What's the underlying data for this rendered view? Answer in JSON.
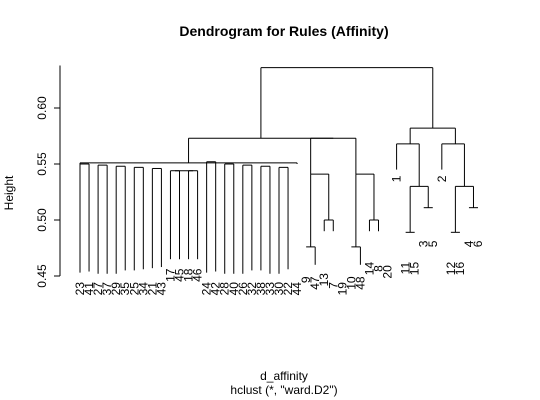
{
  "chart_data": {
    "type": "dendrogram",
    "title": "Dendrogram for Rules (Affinity)",
    "xlabel": "d_affinity",
    "sublabel": "hclust (*, \"ward.D2\")",
    "ylabel": "Height",
    "yticks": [
      0.45,
      0.5,
      0.55,
      0.6
    ],
    "ytick_labels": [
      "0.45",
      "0.50",
      "0.55",
      "0.60"
    ],
    "ylim": [
      0.435,
      0.645
    ],
    "leaf_order": [
      "23",
      "41",
      "27",
      "37",
      "29",
      "35",
      "25",
      "34",
      "21",
      "43",
      "17",
      "45",
      "18",
      "46",
      "24",
      "42",
      "28",
      "40",
      "26",
      "32",
      "38",
      "33",
      "30",
      "22",
      "44",
      "9",
      "47",
      "13",
      "7",
      "19",
      "10",
      "48",
      "14",
      "8",
      "20",
      "1",
      "11",
      "15",
      "3",
      "5",
      "2",
      "12",
      "16",
      "4",
      "6"
    ],
    "label_heights": [
      0.45,
      0.45,
      0.45,
      0.45,
      0.45,
      0.45,
      0.45,
      0.45,
      0.45,
      0.45,
      0.462,
      0.462,
      0.462,
      0.462,
      0.45,
      0.45,
      0.45,
      0.45,
      0.45,
      0.45,
      0.45,
      0.45,
      0.45,
      0.45,
      0.45,
      0.455,
      0.455,
      0.458,
      0.45,
      0.45,
      0.455,
      0.455,
      0.468,
      0.465,
      0.465,
      0.545,
      0.468,
      0.468,
      0.487,
      0.487,
      0.545,
      0.468,
      0.468,
      0.487,
      0.487
    ],
    "merges": [
      [
        0,
        0.453,
        1,
        0.454,
        0.55
      ],
      [
        2,
        0.452,
        3,
        0.452,
        0.549
      ],
      [
        4,
        0.452,
        5,
        0.455,
        0.548
      ],
      [
        6,
        0.455,
        7,
        0.456,
        0.547
      ],
      [
        8,
        0.457,
        9,
        0.458,
        0.546
      ],
      [
        10,
        0.465,
        11,
        0.465,
        0.544
      ],
      [
        12,
        0.465,
        13,
        0.465,
        0.544
      ],
      [
        10.5,
        0.544,
        12.5,
        0.544,
        0.544
      ],
      [
        14,
        0.453,
        15,
        0.454,
        0.552
      ],
      [
        16,
        0.452,
        17,
        0.452,
        0.55
      ],
      [
        18,
        0.452,
        19,
        0.455,
        0.549
      ],
      [
        20,
        0.455,
        21,
        0.452,
        0.548
      ],
      [
        22,
        0.452,
        23,
        0.456,
        0.547
      ],
      [
        25,
        0.476,
        26,
        0.46,
        0.476
      ],
      [
        27,
        0.49,
        28,
        0.49,
        0.5
      ],
      [
        25.5,
        0.476,
        27.5,
        0.5,
        0.541
      ],
      [
        30,
        0.476,
        31,
        0.46,
        0.476
      ],
      [
        32,
        0.49,
        33,
        0.49,
        0.5
      ],
      [
        30.5,
        0.476,
        32.5,
        0.5,
        0.541
      ],
      [
        25.5,
        0.541,
        30.5,
        0.541,
        0.573
      ],
      [
        36,
        0.489,
        37,
        0.489,
        0.489
      ],
      [
        38,
        0.511,
        39,
        0.511,
        0.511
      ],
      [
        36.5,
        0.489,
        38.5,
        0.511,
        0.53
      ],
      [
        35,
        0.545,
        37.5,
        0.53,
        0.568
      ],
      [
        41,
        0.489,
        42,
        0.489,
        0.489
      ],
      [
        43,
        0.511,
        44,
        0.511,
        0.511
      ],
      [
        41.5,
        0.489,
        43.5,
        0.511,
        0.53
      ],
      [
        40,
        0.545,
        42.5,
        0.53,
        0.568
      ],
      [
        36.5,
        0.568,
        41.5,
        0.568,
        0.582
      ],
      [
        0,
        0.55,
        24,
        0.55,
        0.551
      ],
      [
        12,
        0.551,
        28,
        0.573,
        0.573
      ],
      [
        20,
        0.573,
        39,
        0.582,
        0.636
      ]
    ]
  }
}
